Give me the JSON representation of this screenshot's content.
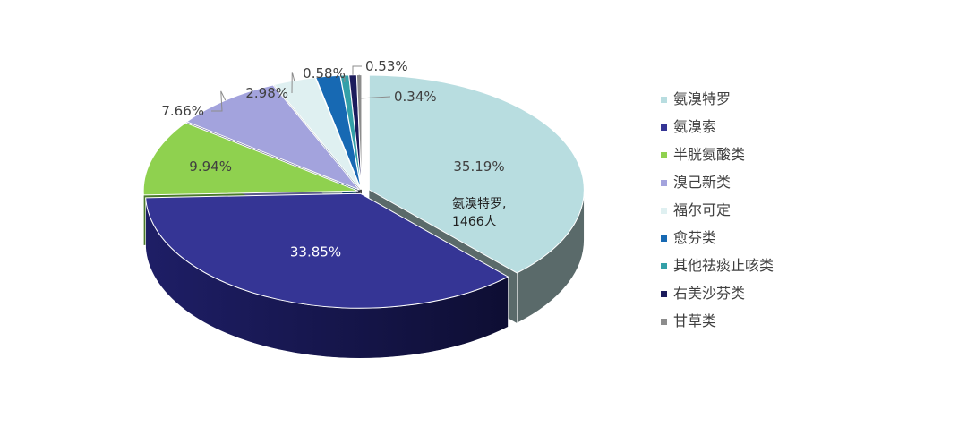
{
  "chart_data": {
    "type": "pie",
    "title": "",
    "slices": [
      {
        "name": "氨溴特罗",
        "value": 35.19,
        "label": "35.19%",
        "color": "#b8dde0",
        "side": "#5a6a6a"
      },
      {
        "name": "氨溴索",
        "value": 33.85,
        "label": "33.85%",
        "color": "#353595",
        "side": "#16164a"
      },
      {
        "name": "半胱氨酸类",
        "value": 9.94,
        "label": "9.94%",
        "color": "#8fd14f",
        "side": "#4a7a2a"
      },
      {
        "name": "溴己新类",
        "value": 7.66,
        "label": "7.66%",
        "color": "#a3a3dd",
        "side": "#5c5c8a"
      },
      {
        "name": "福尔可定",
        "value": 2.98,
        "label": "2.98%",
        "color": "#dff0f1",
        "side": "#8a9a9b"
      },
      {
        "name": "愈芬类",
        "value": 1.69,
        "label": "",
        "color": "#1769b3",
        "side": "#0c3a66"
      },
      {
        "name": "其他祛痰止咳类",
        "value": 0.58,
        "label": "0.58%",
        "color": "#33a0a8",
        "side": "#1c5a60"
      },
      {
        "name": "右美沙芬类",
        "value": 0.53,
        "label": "0.53%",
        "color": "#1c1c5c",
        "side": "#0e0e30"
      },
      {
        "name": "甘草类",
        "value": 0.34,
        "label": "0.34%",
        "color": "#8c8c8c",
        "side": "#4a4a4a"
      }
    ],
    "annotation": {
      "line1": "氨溴特罗,",
      "line2": "1466人"
    },
    "legend_position": "right"
  }
}
